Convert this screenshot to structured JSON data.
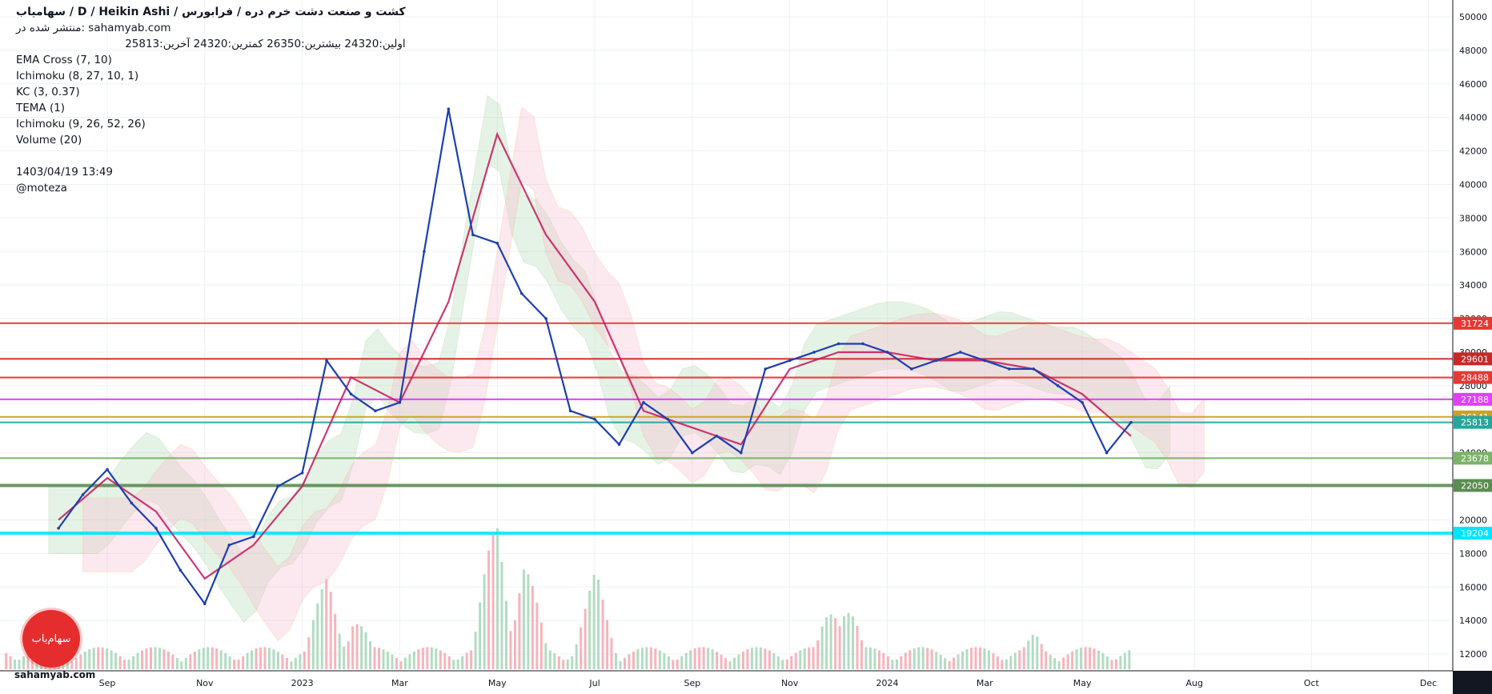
{
  "legend": {
    "title": "کشت و صنعت دشت خرم دره / فرابورس / D / Heikin Ashi / سهامیاب",
    "published": "منتشر شده در: sahamyab.com",
    "ohlc": "اولین:24320  بیشترین:26350  کمترین:24320  آخرین:25813",
    "indicators": [
      "EMA Cross (7, 10)",
      "Ichimoku (8, 27, 10, 1)",
      "KC (3, 0.37)",
      "TEMA (1)",
      "Ichimoku (9, 26, 52, 26)",
      "Volume (20)"
    ],
    "date": "1403/04/19 13:49",
    "author": "@moteza"
  },
  "logo": {
    "text": "سهام‌یاب",
    "site": "sahamyab.com"
  },
  "colors": {
    "grid": "#eef0f3",
    "price_line": "#1e3fae",
    "ma_line": "#c2185b",
    "cloud_green": "#a5d6a7",
    "cloud_red": "#f8bbd0",
    "vol_up": "#a5d6b7",
    "vol_down": "#f4a7b0"
  },
  "chart_data": {
    "type": "line",
    "title": "کشت و صنعت دشت خرم دره / فرابورس / D / Heikin Ashi",
    "ylim": [
      11000,
      51000
    ],
    "y_ticks": [
      12000,
      14000,
      16000,
      18000,
      20000,
      22000,
      24000,
      26000,
      28000,
      30000,
      32000,
      34000,
      36000,
      38000,
      40000,
      42000,
      44000,
      46000,
      48000,
      50000
    ],
    "x_labels": [
      "Sep",
      "Nov",
      "2023",
      "Mar",
      "May",
      "Jul",
      "Sep",
      "Nov",
      "2024",
      "Mar",
      "May",
      "Aug",
      "Oct",
      "Dec"
    ],
    "x_label_month_index": [
      1,
      3,
      5,
      7,
      9,
      11,
      13,
      15,
      17,
      19,
      21,
      23.3,
      25.7,
      28.1
    ],
    "series": [
      {
        "name": "Price (Heikin Ashi close)",
        "month_index": [
          0,
          0.5,
          1,
          1.5,
          2,
          2.5,
          3,
          3.5,
          4,
          4.5,
          5,
          5.5,
          6,
          6.5,
          7,
          7.5,
          8,
          8.5,
          9,
          9.5,
          10,
          10.5,
          11,
          11.5,
          12,
          12.5,
          13,
          13.5,
          14,
          14.5,
          15,
          15.5,
          16,
          16.5,
          17,
          17.5,
          18,
          18.5,
          19,
          19.5,
          20,
          20.5,
          21,
          21.5,
          22
        ],
        "values": [
          19500,
          21500,
          23000,
          21000,
          19500,
          17000,
          15000,
          18500,
          19000,
          22000,
          22800,
          29500,
          27500,
          26500,
          27000,
          36000,
          44500,
          37000,
          36500,
          33500,
          32000,
          26500,
          26000,
          24500,
          27000,
          26000,
          24000,
          25000,
          24000,
          29000,
          29500,
          30000,
          30500,
          30500,
          30000,
          29000,
          29500,
          30000,
          29500,
          29000,
          29000,
          28000,
          27000,
          24000,
          25813
        ]
      },
      {
        "name": "EMA Cross (7, 10)",
        "month_index": [
          0,
          1,
          2,
          3,
          4,
          5,
          6,
          7,
          8,
          9,
          10,
          11,
          12,
          13,
          14,
          15,
          16,
          17,
          18,
          19,
          20,
          21,
          22
        ],
        "values": [
          20000,
          22500,
          20500,
          16500,
          18500,
          22000,
          28500,
          27000,
          33000,
          43000,
          37000,
          33000,
          26500,
          25500,
          24500,
          29000,
          30000,
          30000,
          29500,
          29500,
          29000,
          27500,
          25000
        ]
      }
    ],
    "levels": [
      31724,
      29601,
      28488,
      27188,
      26141,
      25813,
      23678,
      22050,
      19204
    ],
    "level_colors": [
      "#e53935",
      "#c62828",
      "#e53935",
      "#e040fb",
      "#c9a227",
      "#26a69a",
      "#7cb36a",
      "#5b8c51",
      "#00e5ff"
    ],
    "volume": {
      "note": "relative daily volume, 0-1",
      "month_index": [
        5.5,
        6,
        9,
        9.5,
        11,
        16,
        20
      ],
      "values": [
        0.55,
        0.4,
        1.0,
        0.7,
        0.55,
        0.65,
        0.2
      ]
    }
  }
}
